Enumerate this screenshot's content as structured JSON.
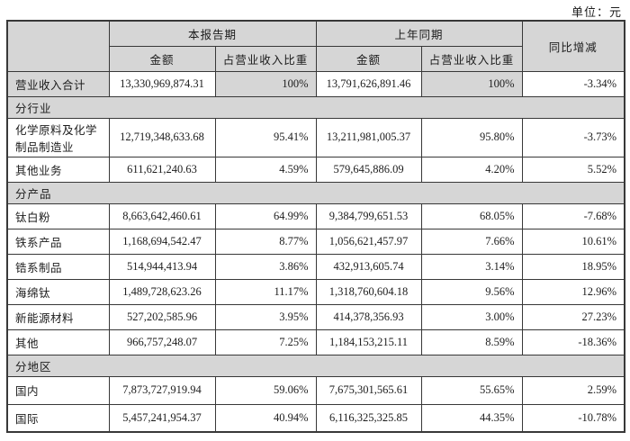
{
  "unit_label": "单位：元",
  "table": {
    "headers": {
      "current_period": "本报告期",
      "prior_period": "上年同期",
      "yoy_change": "同比增减",
      "amount": "金额",
      "pct_of_revenue": "占营业收入比重"
    },
    "rows": [
      {
        "type": "data",
        "shaded": true,
        "label": "营业收入合计",
        "cur_amount": "13,330,969,874.31",
        "cur_pct": "100%",
        "prev_amount": "13,791,626,891.46",
        "prev_pct": "100%",
        "yoy": "-3.34%"
      },
      {
        "type": "section",
        "label": "分行业"
      },
      {
        "type": "data",
        "label": "化学原料及化学制品制造业",
        "cur_amount": "12,719,348,633.68",
        "cur_pct": "95.41%",
        "prev_amount": "13,211,981,005.37",
        "prev_pct": "95.80%",
        "yoy": "-3.73%"
      },
      {
        "type": "data",
        "label": "其他业务",
        "cur_amount": "611,621,240.63",
        "cur_pct": "4.59%",
        "prev_amount": "579,645,886.09",
        "prev_pct": "4.20%",
        "yoy": "5.52%"
      },
      {
        "type": "section",
        "label": "分产品"
      },
      {
        "type": "data",
        "label": "钛白粉",
        "cur_amount": "8,663,642,460.61",
        "cur_pct": "64.99%",
        "prev_amount": "9,384,799,651.53",
        "prev_pct": "68.05%",
        "yoy": "-7.68%"
      },
      {
        "type": "data",
        "label": "铁系产品",
        "cur_amount": "1,168,694,542.47",
        "cur_pct": "8.77%",
        "prev_amount": "1,056,621,457.97",
        "prev_pct": "7.66%",
        "yoy": "10.61%"
      },
      {
        "type": "data",
        "label": "锆系制品",
        "cur_amount": "514,944,413.94",
        "cur_pct": "3.86%",
        "prev_amount": "432,913,605.74",
        "prev_pct": "3.14%",
        "yoy": "18.95%"
      },
      {
        "type": "data",
        "label": "海绵钛",
        "cur_amount": "1,489,728,623.26",
        "cur_pct": "11.17%",
        "prev_amount": "1,318,760,604.18",
        "prev_pct": "9.56%",
        "yoy": "12.96%"
      },
      {
        "type": "data",
        "label": "新能源材料",
        "cur_amount": "527,202,585.96",
        "cur_pct": "3.95%",
        "prev_amount": "414,378,356.93",
        "prev_pct": "3.00%",
        "yoy": "27.23%"
      },
      {
        "type": "data",
        "label": "其他",
        "cur_amount": "966,757,248.07",
        "cur_pct": "7.25%",
        "prev_amount": "1,184,153,215.11",
        "prev_pct": "8.59%",
        "yoy": "-18.36%"
      },
      {
        "type": "section",
        "label": "分地区"
      },
      {
        "type": "data",
        "tall": true,
        "label": "国内",
        "cur_amount": "7,873,727,919.94",
        "cur_pct": "59.06%",
        "prev_amount": "7,675,301,565.61",
        "prev_pct": "55.65%",
        "yoy": "2.59%"
      },
      {
        "type": "data",
        "tall": true,
        "label": "国际",
        "cur_amount": "5,457,241,954.37",
        "cur_pct": "40.94%",
        "prev_amount": "6,116,325,325.85",
        "prev_pct": "44.35%",
        "yoy": "-10.78%"
      }
    ]
  },
  "colors": {
    "shaded_bg": "#d6d6d6",
    "border": "#383838",
    "text": "#1c1c1c"
  }
}
